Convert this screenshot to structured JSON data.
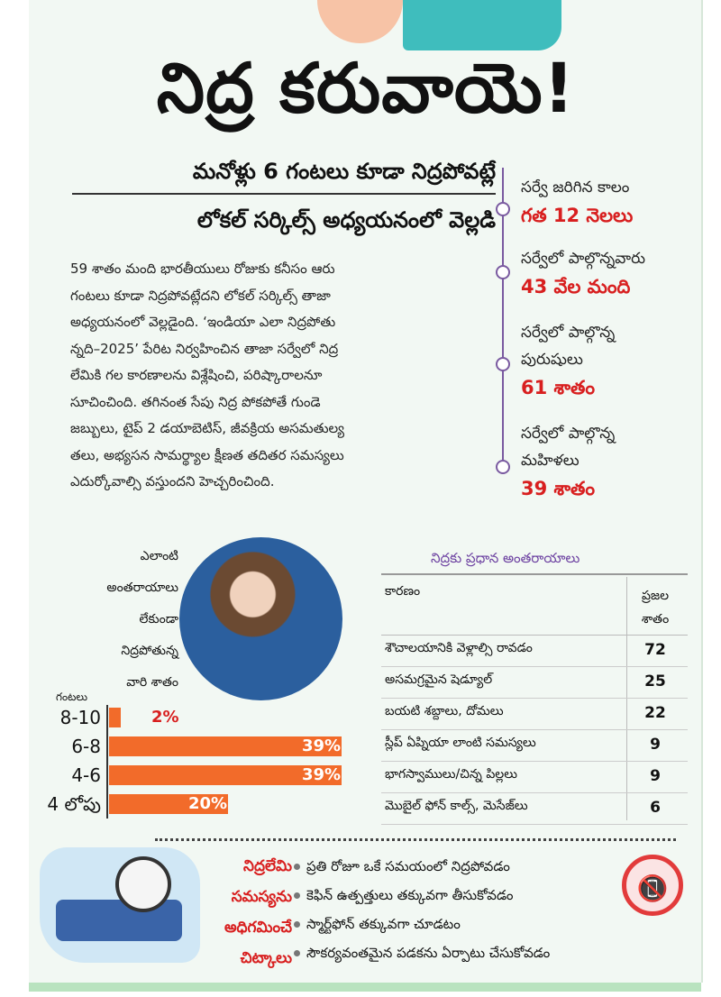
{
  "headline": "నిద్ర కరువాయె!",
  "subheadings": [
    "మనోళ్లు 6 గంటలు కూడా నిద్రపోవట్లే",
    "లోకల్ సర్కిల్స్ అధ్యయనంలో వెల్లడి"
  ],
  "body_lines": [
    "59 శాతం మంది భారతీయులు రోజుకు కనీసం ఆరు",
    "గంటలు కూడా నిద్రపోవట్లేదని లోకల్ సర్కిల్స్ తాజా",
    "అధ్యయనంలో వెల్లడైంది. ‘ఇండియా ఎలా నిద్రపోతు",
    "న్నది–2025’ పేరిట నిర్వహించిన తాజా సర్వేలో నిద్ర",
    "లేమికి గల కారణాలను విశ్లేషించి, పరిష్కారాలనూ",
    "సూచించింది. తగినంత సేపు నిద్ర పోకపోతే గుండె",
    "జబ్బులు, టైప్ 2 డయాబెటిస్, జీవక్రియ అసమతుల్య",
    "తలు, అభ్యసన సామర్థ్యాల క్షీణత తదితర సమస్యలు",
    "ఎదుర్కోవాల్సి వస్తుందని హెచ్చరించింది."
  ],
  "survey_stats": [
    {
      "label_lines": [
        "సర్వే జరిగిన కాలం"
      ],
      "value": "గత 12 నెలలు"
    },
    {
      "label_lines": [
        "సర్వేలో పాల్గొన్నవారు"
      ],
      "value": "43 వేల మంది"
    },
    {
      "label_lines": [
        "సర్వేలో పాల్గొన్న",
        "పురుషులు"
      ],
      "value": "61 శాతం"
    },
    {
      "label_lines": [
        "సర్వేలో పాల్గొన్న",
        "మహిళలు"
      ],
      "value": "39 శాతం"
    }
  ],
  "sleep_chart_label_lines": [
    "ఎలాంటి",
    "అంతరాయాలు",
    "లేకుండా",
    "నిద్రపోతున్న",
    "వారి శాతం"
  ],
  "chart_data": {
    "type": "bar",
    "orientation": "horizontal",
    "unit_label": "గంటలు",
    "categories": [
      "8-10",
      "6-8",
      "4-6",
      "4 లోపు"
    ],
    "values": [
      2,
      39,
      39,
      20
    ],
    "value_labels": [
      "2%",
      "39%",
      "39%",
      "20%"
    ],
    "xlim": [
      0,
      39
    ],
    "bar_color": "#f26b2a",
    "small_value_color": "#d81f1f"
  },
  "disruptions_table": {
    "title": "నిద్రకు ప్రధాన అంతరాయాలు",
    "header_reason": "కారణం",
    "header_pct_lines": [
      "ప్రజల",
      "శాతం"
    ],
    "rows": [
      {
        "reason": "శౌచాలయానికి వెళ్లాల్సి రావడం",
        "pct": "72"
      },
      {
        "reason": "అసమగ్రమైన షెడ్యూల్",
        "pct": "25"
      },
      {
        "reason": "బయటి శబ్దాలు, దోమలు",
        "pct": "22"
      },
      {
        "reason": "స్లీప్ ఏప్నియా లాంటి సమస్యలు",
        "pct": "9"
      },
      {
        "reason": "భాగస్వాములు/చిన్న పిల్లలు",
        "pct": "9"
      },
      {
        "reason": "మొబైల్ ఫోన్ కాల్స్, మెసేజ్‌లు",
        "pct": "6"
      }
    ]
  },
  "tips": {
    "heading_lines": [
      "నిద్రలేమి",
      "సమస్యను",
      "అధిగమించే",
      "చిట్కాలు"
    ],
    "items": [
      "ప్రతి రోజూ ఒకే సమయంలో నిద్రపోవడం",
      "కెఫిన్ ఉత్పత్తులు తక్కువగా తీసుకోవడం",
      "స్మార్ట్‌ఫోన్ తక్కువగా చూడటం",
      "సౌకర్యవంతమైన పడకను ఏర్పాటు చేసుకోవడం"
    ]
  },
  "icons": {
    "phone": "no-phone-icon",
    "clock": "alarm-clock-icon"
  },
  "colors": {
    "accent_red": "#d81f1f",
    "bar_orange": "#f26b2a",
    "timeline_purple": "#7a5aa0",
    "panel_bg": "#f2f8f3"
  }
}
